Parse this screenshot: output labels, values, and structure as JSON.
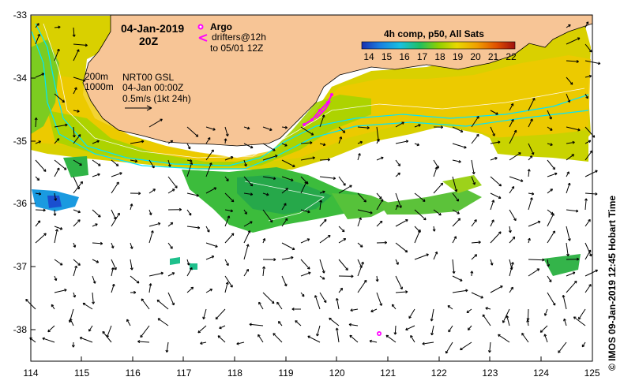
{
  "title": {
    "date": "04-Jan-2019",
    "time": "20Z"
  },
  "legend_argo": {
    "argo_label": "Argo",
    "drifters_label": "drifters@12h",
    "drifters_to": "to 05/01 12Z",
    "argo_color": "#ff00ff"
  },
  "colorbar": {
    "title": "4h comp, p50, All Sats",
    "ticks": [
      "14",
      "15",
      "16",
      "17",
      "18",
      "19",
      "20",
      "21",
      "22"
    ]
  },
  "info": {
    "depth_200": "200m",
    "depth_1000": "1000m",
    "product": "NRT00 GSL",
    "valid_time": "04-Jan 00:00Z",
    "scale": "0.5m/s (1kt 24h)"
  },
  "axes": {
    "lat_ticks": [
      "-33",
      "-34",
      "-35",
      "-36",
      "-37",
      "-38"
    ],
    "lon_ticks": [
      "114",
      "115",
      "116",
      "117",
      "118",
      "119",
      "120",
      "121",
      "122",
      "123",
      "124",
      "125"
    ]
  },
  "credit": "©  IMOS 09-Jan-2019 12:45 Hobart Time",
  "colors": {
    "land": "#f7c596",
    "contour": "#00e5ff",
    "sst_warm": "#f2d800",
    "sst_mid": "#9ed300",
    "sst_cool": "#2bb443"
  }
}
